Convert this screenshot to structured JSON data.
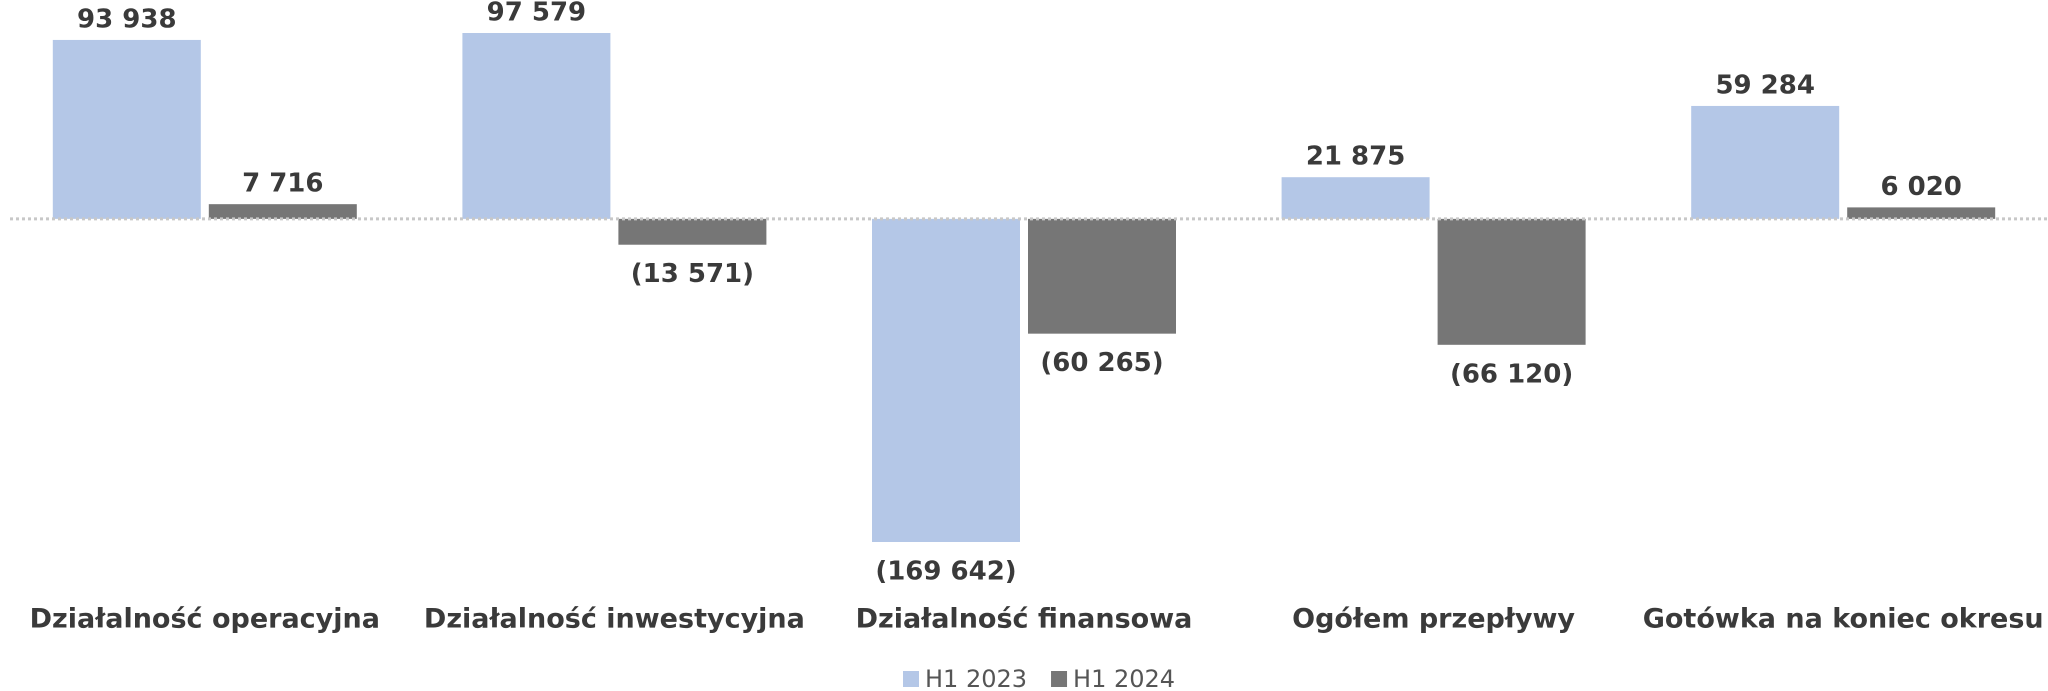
{
  "chart_data": {
    "type": "bar",
    "categories": [
      "Działalność operacyjna",
      "Działalność inwestycyjna",
      "Działalność finansowa",
      "Ogółem przepływy",
      "Gotówka na koniec okresu"
    ],
    "series": [
      {
        "name": "H1 2023",
        "color": "#b4c7e7",
        "values": [
          93938,
          97579,
          -169642,
          21875,
          59284
        ],
        "value_labels": [
          "93 938",
          "97 579",
          "(169 642)",
          "21 875",
          "59 284"
        ]
      },
      {
        "name": "H1 2024",
        "color": "#767676",
        "values": [
          7716,
          -13571,
          -60265,
          -66120,
          6020
        ],
        "value_labels": [
          "7 716",
          "(13 571)",
          "(60 265)",
          "(66 120)",
          "6 020"
        ]
      }
    ],
    "legend": "bottom"
  }
}
